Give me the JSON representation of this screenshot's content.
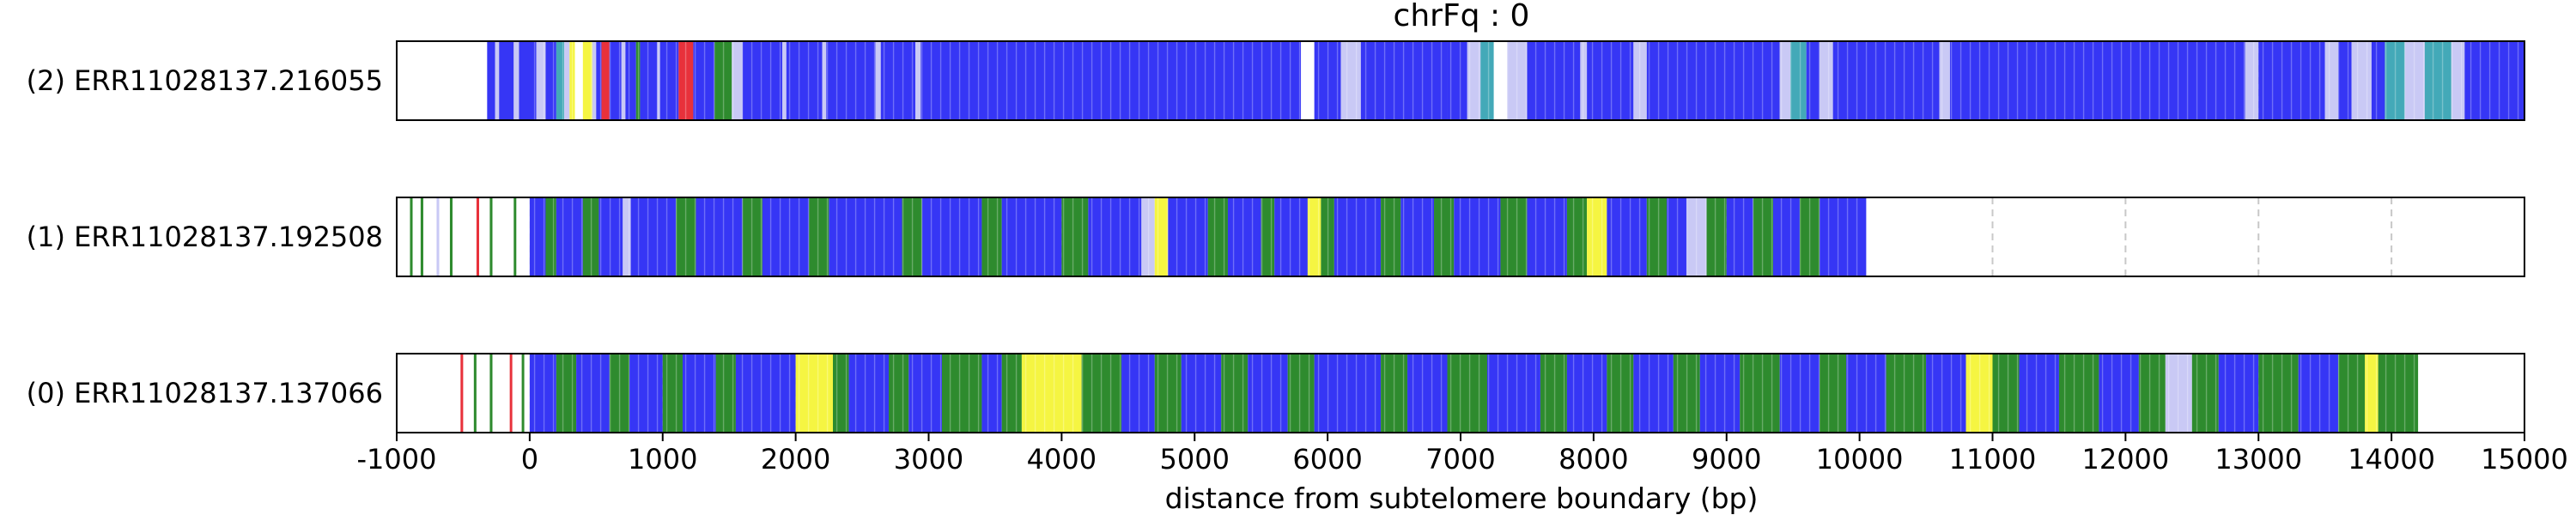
{
  "chart_data": {
    "type": "heatmap",
    "title": "chrFq : 0",
    "xlabel": "distance from subtelomere boundary (bp)",
    "xlim": [
      -1000,
      15000
    ],
    "xticks": [
      -1000,
      0,
      1000,
      2000,
      3000,
      4000,
      5000,
      6000,
      7000,
      8000,
      9000,
      10000,
      11000,
      12000,
      13000,
      14000,
      15000
    ],
    "gridlines": "dashed vertical at each 1000 bp",
    "palette": {
      "blue": "#3636f5",
      "green": "#2e8b2e",
      "yellow": "#f5f542",
      "red": "#e8313b",
      "white": "#ffffff",
      "teal": "#43a9b8",
      "light": "#c9c9f5",
      "grid": "#c8c8c8"
    },
    "tracks": [
      {
        "label": "(2) ERR11028137.216055",
        "start": -320,
        "end": 15000,
        "segments": [
          [
            -320,
            -260,
            "blue"
          ],
          [
            -260,
            -230,
            "light"
          ],
          [
            -230,
            -120,
            "blue"
          ],
          [
            -120,
            -80,
            "light"
          ],
          [
            -80,
            50,
            "blue"
          ],
          [
            50,
            120,
            "light"
          ],
          [
            120,
            200,
            "blue"
          ],
          [
            200,
            260,
            "teal"
          ],
          [
            260,
            300,
            "light"
          ],
          [
            300,
            340,
            "yellow"
          ],
          [
            340,
            400,
            "white"
          ],
          [
            400,
            470,
            "yellow"
          ],
          [
            470,
            500,
            "light"
          ],
          [
            500,
            540,
            "blue"
          ],
          [
            540,
            600,
            "red"
          ],
          [
            600,
            690,
            "blue"
          ],
          [
            690,
            720,
            "light"
          ],
          [
            720,
            800,
            "blue"
          ],
          [
            800,
            830,
            "green"
          ],
          [
            830,
            960,
            "blue"
          ],
          [
            960,
            980,
            "light"
          ],
          [
            980,
            1120,
            "blue"
          ],
          [
            1120,
            1230,
            "red"
          ],
          [
            1230,
            1390,
            "blue"
          ],
          [
            1390,
            1520,
            "green"
          ],
          [
            1520,
            1600,
            "light"
          ],
          [
            1600,
            1900,
            "blue"
          ],
          [
            1900,
            1930,
            "light"
          ],
          [
            1930,
            2200,
            "blue"
          ],
          [
            2200,
            2230,
            "light"
          ],
          [
            2230,
            2600,
            "blue"
          ],
          [
            2600,
            2640,
            "light"
          ],
          [
            2640,
            2900,
            "blue"
          ],
          [
            2900,
            2940,
            "light"
          ],
          [
            2940,
            3300,
            "blue"
          ],
          [
            3300,
            5800,
            "blue"
          ],
          [
            5800,
            5900,
            "white"
          ],
          [
            5900,
            6100,
            "blue"
          ],
          [
            6100,
            6250,
            "light"
          ],
          [
            6250,
            6900,
            "blue"
          ],
          [
            6900,
            7050,
            "blue"
          ],
          [
            7050,
            7150,
            "light"
          ],
          [
            7150,
            7250,
            "teal"
          ],
          [
            7250,
            7350,
            "white"
          ],
          [
            7350,
            7500,
            "light"
          ],
          [
            7500,
            7900,
            "blue"
          ],
          [
            7900,
            7950,
            "light"
          ],
          [
            7950,
            8300,
            "blue"
          ],
          [
            8300,
            8400,
            "light"
          ],
          [
            8400,
            9400,
            "blue"
          ],
          [
            9400,
            9480,
            "light"
          ],
          [
            9480,
            9600,
            "teal"
          ],
          [
            9600,
            9700,
            "blue"
          ],
          [
            9700,
            9800,
            "light"
          ],
          [
            9800,
            10600,
            "blue"
          ],
          [
            10600,
            10680,
            "light"
          ],
          [
            10680,
            12900,
            "blue"
          ],
          [
            12900,
            13000,
            "light"
          ],
          [
            13000,
            13500,
            "blue"
          ],
          [
            13500,
            13600,
            "light"
          ],
          [
            13600,
            13700,
            "blue"
          ],
          [
            13700,
            13850,
            "light"
          ],
          [
            13850,
            13950,
            "blue"
          ],
          [
            13950,
            14100,
            "teal"
          ],
          [
            14100,
            14250,
            "light"
          ],
          [
            14250,
            14450,
            "teal"
          ],
          [
            14450,
            14550,
            "light"
          ],
          [
            14550,
            15000,
            "blue"
          ]
        ]
      },
      {
        "label": "(1) ERR11028137.192508",
        "start": -1000,
        "end": 10050,
        "segments": [
          [
            -1000,
            -900,
            "white"
          ],
          [
            -900,
            -880,
            "green"
          ],
          [
            -880,
            -820,
            "white"
          ],
          [
            -820,
            -800,
            "green"
          ],
          [
            -800,
            -700,
            "white"
          ],
          [
            -700,
            -680,
            "light"
          ],
          [
            -680,
            -600,
            "white"
          ],
          [
            -600,
            -580,
            "green"
          ],
          [
            -580,
            -400,
            "white"
          ],
          [
            -400,
            -380,
            "red"
          ],
          [
            -380,
            -300,
            "white"
          ],
          [
            -300,
            -280,
            "green"
          ],
          [
            -280,
            -120,
            "white"
          ],
          [
            -120,
            -100,
            "green"
          ],
          [
            -100,
            0,
            "white"
          ],
          [
            0,
            120,
            "blue"
          ],
          [
            120,
            200,
            "green"
          ],
          [
            200,
            400,
            "blue"
          ],
          [
            400,
            520,
            "green"
          ],
          [
            520,
            700,
            "blue"
          ],
          [
            700,
            760,
            "light"
          ],
          [
            760,
            1100,
            "blue"
          ],
          [
            1100,
            1250,
            "green"
          ],
          [
            1250,
            1600,
            "blue"
          ],
          [
            1600,
            1750,
            "green"
          ],
          [
            1750,
            2100,
            "blue"
          ],
          [
            2100,
            2250,
            "green"
          ],
          [
            2250,
            2800,
            "blue"
          ],
          [
            2800,
            2950,
            "green"
          ],
          [
            2950,
            3400,
            "blue"
          ],
          [
            3400,
            3550,
            "green"
          ],
          [
            3550,
            4000,
            "blue"
          ],
          [
            4000,
            4200,
            "green"
          ],
          [
            4200,
            4600,
            "blue"
          ],
          [
            4600,
            4700,
            "light"
          ],
          [
            4700,
            4800,
            "yellow"
          ],
          [
            4800,
            5100,
            "blue"
          ],
          [
            5100,
            5250,
            "green"
          ],
          [
            5250,
            5500,
            "blue"
          ],
          [
            5500,
            5600,
            "green"
          ],
          [
            5600,
            5850,
            "blue"
          ],
          [
            5850,
            5950,
            "yellow"
          ],
          [
            5950,
            6050,
            "green"
          ],
          [
            6050,
            6400,
            "blue"
          ],
          [
            6400,
            6550,
            "green"
          ],
          [
            6550,
            6800,
            "blue"
          ],
          [
            6800,
            6950,
            "green"
          ],
          [
            6950,
            7300,
            "blue"
          ],
          [
            7300,
            7500,
            "green"
          ],
          [
            7500,
            7800,
            "blue"
          ],
          [
            7800,
            7950,
            "green"
          ],
          [
            7950,
            8100,
            "yellow"
          ],
          [
            8100,
            8400,
            "blue"
          ],
          [
            8400,
            8550,
            "green"
          ],
          [
            8550,
            8700,
            "blue"
          ],
          [
            8700,
            8850,
            "light"
          ],
          [
            8850,
            9000,
            "green"
          ],
          [
            9000,
            9200,
            "blue"
          ],
          [
            9200,
            9350,
            "green"
          ],
          [
            9350,
            9550,
            "blue"
          ],
          [
            9550,
            9700,
            "green"
          ],
          [
            9700,
            10050,
            "blue"
          ]
        ]
      },
      {
        "label": "(0) ERR11028137.137066",
        "start": -1000,
        "end": 14200,
        "segments": [
          [
            -1000,
            -520,
            "white"
          ],
          [
            -520,
            -500,
            "red"
          ],
          [
            -500,
            -420,
            "white"
          ],
          [
            -420,
            -400,
            "green"
          ],
          [
            -400,
            -300,
            "white"
          ],
          [
            -300,
            -280,
            "green"
          ],
          [
            -280,
            -150,
            "white"
          ],
          [
            -150,
            -130,
            "red"
          ],
          [
            -130,
            -60,
            "white"
          ],
          [
            -60,
            -40,
            "green"
          ],
          [
            -40,
            0,
            "white"
          ],
          [
            0,
            200,
            "blue"
          ],
          [
            200,
            350,
            "green"
          ],
          [
            350,
            600,
            "blue"
          ],
          [
            600,
            750,
            "green"
          ],
          [
            750,
            1000,
            "blue"
          ],
          [
            1000,
            1150,
            "green"
          ],
          [
            1150,
            1400,
            "blue"
          ],
          [
            1400,
            1550,
            "green"
          ],
          [
            1550,
            2000,
            "blue"
          ],
          [
            2000,
            2280,
            "yellow"
          ],
          [
            2280,
            2400,
            "green"
          ],
          [
            2400,
            2700,
            "blue"
          ],
          [
            2700,
            2850,
            "green"
          ],
          [
            2850,
            3100,
            "blue"
          ],
          [
            3100,
            3400,
            "green"
          ],
          [
            3400,
            3550,
            "blue"
          ],
          [
            3550,
            3700,
            "green"
          ],
          [
            3700,
            4150,
            "yellow"
          ],
          [
            4150,
            4450,
            "green"
          ],
          [
            4450,
            4700,
            "blue"
          ],
          [
            4700,
            4900,
            "green"
          ],
          [
            4900,
            5200,
            "blue"
          ],
          [
            5200,
            5400,
            "green"
          ],
          [
            5400,
            5700,
            "blue"
          ],
          [
            5700,
            5900,
            "green"
          ],
          [
            5900,
            6400,
            "blue"
          ],
          [
            6400,
            6600,
            "green"
          ],
          [
            6600,
            6900,
            "blue"
          ],
          [
            6900,
            7200,
            "green"
          ],
          [
            7200,
            7600,
            "blue"
          ],
          [
            7600,
            7800,
            "green"
          ],
          [
            7800,
            8100,
            "blue"
          ],
          [
            8100,
            8300,
            "green"
          ],
          [
            8300,
            8600,
            "blue"
          ],
          [
            8600,
            8800,
            "green"
          ],
          [
            8800,
            9100,
            "blue"
          ],
          [
            9100,
            9400,
            "green"
          ],
          [
            9400,
            9700,
            "blue"
          ],
          [
            9700,
            9900,
            "green"
          ],
          [
            9900,
            10200,
            "blue"
          ],
          [
            10200,
            10500,
            "green"
          ],
          [
            10500,
            10800,
            "blue"
          ],
          [
            10800,
            11000,
            "yellow"
          ],
          [
            11000,
            11200,
            "green"
          ],
          [
            11200,
            11500,
            "blue"
          ],
          [
            11500,
            11800,
            "green"
          ],
          [
            11800,
            12100,
            "blue"
          ],
          [
            12100,
            12300,
            "green"
          ],
          [
            12300,
            12500,
            "light"
          ],
          [
            12500,
            12700,
            "green"
          ],
          [
            12700,
            13000,
            "blue"
          ],
          [
            13000,
            13300,
            "green"
          ],
          [
            13300,
            13600,
            "blue"
          ],
          [
            13600,
            13800,
            "green"
          ],
          [
            13800,
            13900,
            "yellow"
          ],
          [
            13900,
            14200,
            "green"
          ]
        ]
      }
    ]
  }
}
